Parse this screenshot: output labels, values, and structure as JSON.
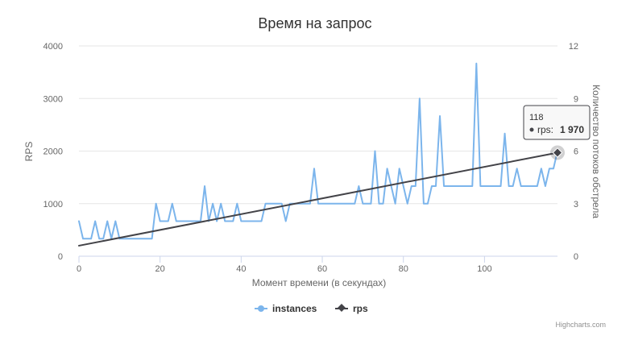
{
  "chart_data": {
    "type": "line",
    "title": "Время на запрос",
    "xlabel": "Момент времени (в секундах)",
    "ylabel": "RPS",
    "y2label": "Количество потоков обстрела",
    "xlim": [
      0,
      118
    ],
    "ylim": [
      0,
      4000
    ],
    "y2lim": [
      0,
      12
    ],
    "x_ticks": [
      "0",
      "20",
      "40",
      "60",
      "80",
      "100"
    ],
    "y_ticks": [
      "0",
      "1000",
      "2000",
      "3000",
      "4000"
    ],
    "y2_ticks": [
      "0",
      "3",
      "6",
      "9",
      "12"
    ],
    "grid": true,
    "legend_position": "bottom-center",
    "credits": "Highcharts.com",
    "series": [
      {
        "name": "instances",
        "axis": "right",
        "color": "#7cb5ec",
        "x": [
          0,
          1,
          2,
          3,
          4,
          5,
          6,
          7,
          8,
          9,
          10,
          11,
          12,
          13,
          14,
          15,
          16,
          17,
          18,
          19,
          20,
          21,
          22,
          23,
          24,
          25,
          26,
          27,
          28,
          29,
          30,
          31,
          32,
          33,
          34,
          35,
          36,
          37,
          38,
          39,
          40,
          41,
          42,
          43,
          44,
          45,
          46,
          47,
          48,
          49,
          50,
          51,
          52,
          53,
          54,
          55,
          56,
          57,
          58,
          59,
          60,
          61,
          62,
          63,
          64,
          65,
          66,
          67,
          68,
          69,
          70,
          71,
          72,
          73,
          74,
          75,
          76,
          77,
          78,
          79,
          80,
          81,
          82,
          83,
          84,
          85,
          86,
          87,
          88,
          89,
          90,
          91,
          92,
          93,
          94,
          95,
          96,
          97,
          98,
          99,
          100,
          101,
          102,
          103,
          104,
          105,
          106,
          107,
          108,
          109,
          110,
          111,
          112,
          113,
          114,
          115,
          116,
          117,
          118
        ],
        "values": [
          2,
          1,
          1,
          1,
          2,
          1,
          1,
          2,
          1,
          2,
          1,
          1,
          1,
          1,
          1,
          1,
          1,
          1,
          1,
          3,
          2,
          2,
          2,
          3,
          2,
          2,
          2,
          2,
          2,
          2,
          2,
          4,
          2,
          3,
          2,
          3,
          2,
          2,
          2,
          3,
          2,
          2,
          2,
          2,
          2,
          2,
          3,
          3,
          3,
          3,
          3,
          2,
          3,
          3,
          3,
          3,
          3,
          3,
          5,
          3,
          3,
          3,
          3,
          3,
          3,
          3,
          3,
          3,
          3,
          4,
          3,
          3,
          3,
          6,
          3,
          3,
          5,
          4,
          3,
          5,
          4,
          3,
          4,
          4,
          9,
          3,
          3,
          4,
          4,
          8,
          4,
          4,
          4,
          4,
          4,
          4,
          4,
          4,
          11,
          4,
          4,
          4,
          4,
          4,
          4,
          7,
          4,
          4,
          5,
          4,
          4,
          4,
          4,
          4,
          5,
          4,
          5,
          5,
          6
        ]
      },
      {
        "name": "rps",
        "axis": "left",
        "color": "#434348",
        "x": [
          0,
          118
        ],
        "values": [
          200,
          1970
        ]
      }
    ],
    "tooltip": {
      "header": "118",
      "series_label": "rps:",
      "value": "1 970"
    }
  }
}
